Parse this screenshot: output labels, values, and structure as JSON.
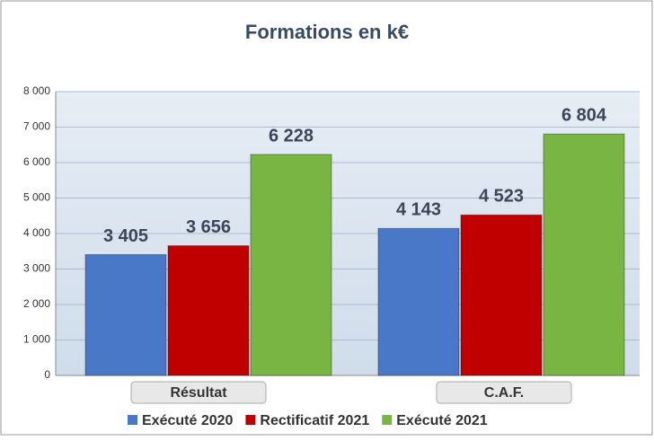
{
  "chart_data": {
    "type": "bar",
    "title": "Formations en k€",
    "categories": [
      "Résultat",
      "C.A.F."
    ],
    "series": [
      {
        "name": "Exécuté 2020",
        "color": "#4a78c8",
        "values": [
          3405,
          4143
        ],
        "value_labels": [
          "3 405",
          "4 143"
        ]
      },
      {
        "name": "Rectificatif 2021",
        "color": "#c00000",
        "values": [
          3656,
          4523
        ],
        "value_labels": [
          "3 656",
          "4 523"
        ]
      },
      {
        "name": "Exécuté 2021",
        "color": "#79b543",
        "values": [
          6228,
          6804
        ],
        "value_labels": [
          "6 228",
          "6 804"
        ]
      }
    ],
    "ylim": [
      0,
      8000
    ],
    "yticks": [
      0,
      {
        "value": 1000,
        "label": "1 000"
      },
      {
        "value": 2000,
        "label": "2 000"
      },
      {
        "value": 3000,
        "label": "3 000"
      },
      {
        "value": 4000,
        "label": "4 000"
      },
      {
        "value": 5000,
        "label": "5 000"
      },
      {
        "value": 6000,
        "label": "6 000"
      },
      {
        "value": 7000,
        "label": "7 000"
      },
      {
        "value": 8000,
        "label": "8 000"
      }
    ],
    "grid": true
  }
}
